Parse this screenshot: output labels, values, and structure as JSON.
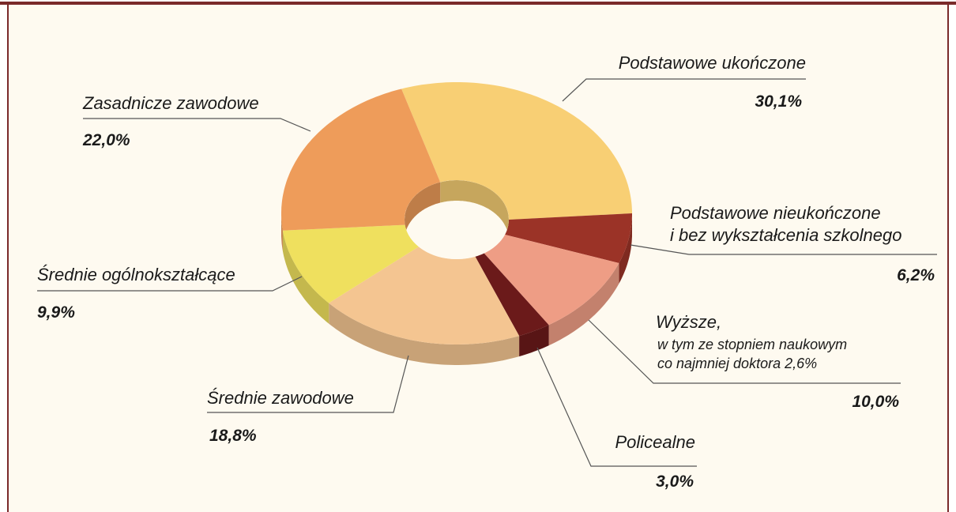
{
  "chart_data": {
    "type": "pie",
    "categories": [
      "Podstawowe ukończone",
      "Podstawowe nieukończone\ni bez wykształcenia szkolnego",
      "Wyższe,",
      "Policealne",
      "Średnie zawodowe",
      "Średnie ogólnokształcące",
      "Zasadnicze zawodowe"
    ],
    "values": [
      30.1,
      6.2,
      10.0,
      3.0,
      18.8,
      9.9,
      22.0
    ],
    "value_labels": [
      "30,1%",
      "6,2%",
      "10,0%",
      "3,0%",
      "18,8%",
      "9,9%",
      "22,0%"
    ],
    "colors": [
      "#f8cf74",
      "#9b3327",
      "#ee9d85",
      "#6b1a1a",
      "#f4c591",
      "#efe05e",
      "#ee9c5a"
    ],
    "annotations": [
      {
        "category": 2,
        "text": "w tym ze stopniem naukowym\nco najmniej doktora 2,6%"
      }
    ]
  }
}
